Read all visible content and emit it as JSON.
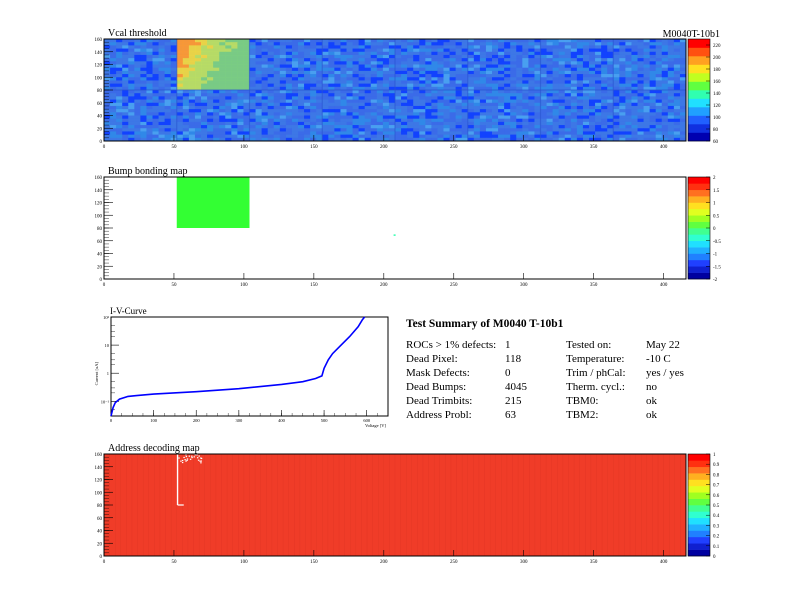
{
  "module_id": "M0040T-10b1",
  "colors": {
    "frame": "#000000",
    "curve": "#0000ff",
    "address_bg": "#f03c28",
    "bump_fill": "#33ff33",
    "vcal_base": "#3b6be8"
  },
  "chart_data": [
    {
      "type": "heatmap",
      "name": "vcal",
      "title": "Vcal threshold",
      "x_ticks": [
        "0",
        "50",
        "100",
        "150",
        "200",
        "250",
        "300",
        "350",
        "400"
      ],
      "y_ticks": [
        "0",
        "20",
        "40",
        "60",
        "80",
        "100",
        "120",
        "140",
        "160"
      ],
      "xlim": [
        0,
        416
      ],
      "ylim": [
        0,
        160
      ],
      "colorbar_ticks": [
        "60",
        "80",
        "100",
        "120",
        "140",
        "160",
        "180",
        "200",
        "220"
      ],
      "colorbar_range": [
        60,
        230
      ],
      "highlight_roc": {
        "x": [
          52,
          104
        ],
        "y": [
          80,
          160
        ],
        "level": "high"
      }
    },
    {
      "type": "heatmap",
      "name": "bump",
      "title": "Bump bonding map",
      "x_ticks": [
        "0",
        "50",
        "100",
        "150",
        "200",
        "250",
        "300",
        "350",
        "400"
      ],
      "y_ticks": [
        "0",
        "20",
        "40",
        "60",
        "80",
        "100",
        "120",
        "140",
        "160"
      ],
      "xlim": [
        0,
        416
      ],
      "ylim": [
        0,
        160
      ],
      "colorbar_ticks": [
        "-2",
        "-1.5",
        "-1",
        "-0.5",
        "0",
        "0.5",
        "1",
        "1.5",
        "2"
      ],
      "colorbar_range": [
        -2,
        2
      ],
      "filled_roc": {
        "x": [
          52,
          104
        ],
        "y": [
          80,
          160
        ],
        "value": 0
      },
      "isolated_pixel": {
        "x": 207,
        "y": 70
      }
    },
    {
      "type": "line",
      "name": "iv",
      "title": "I-V-Curve",
      "xlabel": "Voltage [V]",
      "ylabel": "Current [uA]",
      "x_ticks": [
        "0",
        "100",
        "200",
        "300",
        "400",
        "500",
        "600"
      ],
      "y_ticks": [
        "10⁻¹",
        "1",
        "10",
        "10²"
      ],
      "y_tick_values": [
        0.1,
        1,
        10,
        100
      ],
      "xlim": [
        0,
        650
      ],
      "ylim": [
        0.03,
        100
      ],
      "log_y": true,
      "x": [
        0,
        5,
        10,
        20,
        40,
        60,
        100,
        200,
        300,
        400,
        450,
        480,
        495,
        500,
        510,
        520,
        540,
        560,
        580,
        590,
        595
      ],
      "y": [
        0.03,
        0.06,
        0.09,
        0.12,
        0.15,
        0.16,
        0.18,
        0.22,
        0.28,
        0.4,
        0.5,
        0.65,
        0.8,
        1.5,
        3.0,
        5.0,
        10.0,
        20.0,
        45.0,
        80.0,
        100.0
      ]
    },
    {
      "type": "heatmap",
      "name": "address",
      "title": "Address decoding map",
      "x_ticks": [
        "0",
        "50",
        "100",
        "150",
        "200",
        "250",
        "300",
        "350",
        "400"
      ],
      "y_ticks": [
        "0",
        "20",
        "40",
        "60",
        "80",
        "100",
        "120",
        "140",
        "160"
      ],
      "xlim": [
        0,
        416
      ],
      "ylim": [
        0,
        160
      ],
      "colorbar_ticks": [
        "0",
        "0.1",
        "0.2",
        "0.3",
        "0.4",
        "0.5",
        "0.6",
        "0.7",
        "0.8",
        "0.9",
        "1"
      ],
      "colorbar_range": [
        0,
        1
      ],
      "bad_region": {
        "x": [
          52,
          56
        ],
        "y": [
          80,
          160
        ]
      }
    }
  ],
  "summary": {
    "title": "Test Summary of M0040     T-10b1",
    "rows": [
      {
        "label": "ROCs > 1% defects:",
        "value": "1",
        "label2": "Tested on:",
        "value2": "May 22"
      },
      {
        "label": "Dead Pixel:",
        "value": "118",
        "label2": "Temperature:",
        "value2": "-10 C"
      },
      {
        "label": "Mask Defects:",
        "value": "0",
        "label2": "Trim / phCal:",
        "value2": "yes / yes"
      },
      {
        "label": "Dead Bumps:",
        "value": "4045",
        "label2": "Therm. cycl.:",
        "value2": "no"
      },
      {
        "label": "Dead Trimbits:",
        "value": "215",
        "label2": "TBM0:",
        "value2": "ok"
      },
      {
        "label": "Address Probl:",
        "value": "63",
        "label2": "TBM2:",
        "value2": "ok"
      }
    ]
  }
}
